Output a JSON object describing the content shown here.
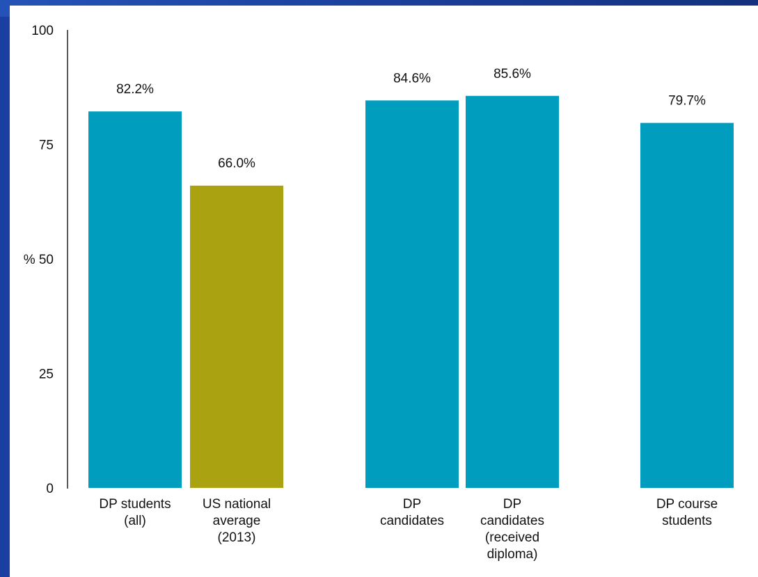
{
  "chart_data": {
    "type": "bar",
    "categories": [
      [
        "DP students",
        "(all)"
      ],
      [
        "US national",
        "average",
        "(2013)"
      ],
      [
        "DP",
        "candidates"
      ],
      [
        "DP",
        "candidates",
        "(received",
        "diploma)"
      ],
      [
        "DP course",
        "students"
      ]
    ],
    "values": [
      82.2,
      66.0,
      84.6,
      85.6,
      79.7
    ],
    "value_labels": [
      "82.2%",
      "66.0%",
      "84.6%",
      "85.6%",
      "79.7%"
    ],
    "bar_colors": [
      "#009dbf",
      "#aaa211",
      "#009dbf",
      "#009dbf",
      "#009dbf"
    ],
    "yticks": [
      "0",
      "25",
      "% 50",
      "75",
      "100"
    ],
    "ytick_values": [
      0,
      25,
      50,
      75,
      100
    ],
    "ylim": [
      0,
      100
    ],
    "grid": false
  },
  "colors": {
    "primary_bar": "#009dbf",
    "comparison_bar": "#aaa211",
    "background": "#1b3fa0"
  }
}
